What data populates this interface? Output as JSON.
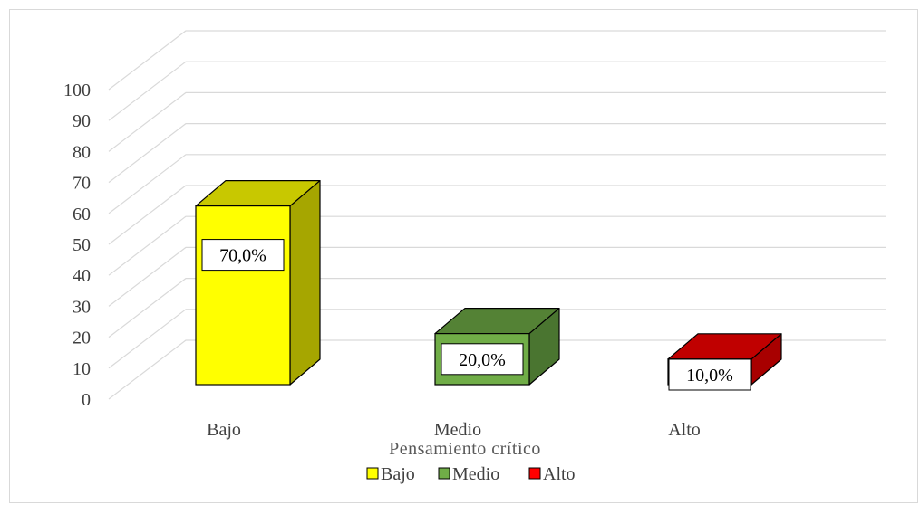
{
  "chart_data": {
    "type": "bar",
    "style": "3d-column",
    "categories": [
      "Bajo",
      "Medio",
      "Alto"
    ],
    "values": [
      70,
      20,
      10
    ],
    "data_labels": [
      "70,0%",
      "20,0%",
      "10,0%"
    ],
    "colors": {
      "Bajo": {
        "front": "#ffff00",
        "side": "#a6a600",
        "top": "#c8c800"
      },
      "Medio": {
        "front": "#70ad47",
        "side": "#4a7530",
        "top": "#548235"
      },
      "Alto": {
        "front": "#ff0000",
        "side": "#a80000",
        "top": "#c00000"
      }
    },
    "xlabel": "Pensamiento crítico",
    "ylabel": "",
    "ylim": [
      0,
      100
    ],
    "ytick_step": 10,
    "yticks": [
      "0",
      "10",
      "20",
      "30",
      "40",
      "50",
      "60",
      "70",
      "80",
      "90",
      "100"
    ],
    "grid": true,
    "legend": {
      "placement": "bottom",
      "entries": [
        {
          "label": "Bajo",
          "color": "#ffff00"
        },
        {
          "label": "Medio",
          "color": "#70ad47"
        },
        {
          "label": "Alto",
          "color": "#ff0000"
        }
      ]
    }
  }
}
